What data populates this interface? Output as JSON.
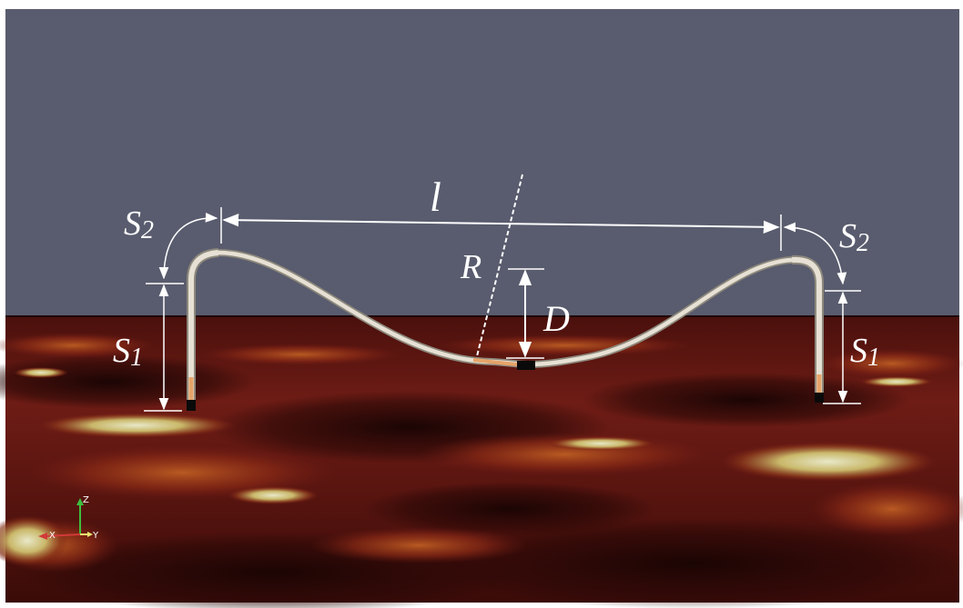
{
  "figure": {
    "labels": {
      "l": "l",
      "R": "R",
      "D": "D",
      "S2_left": "S2",
      "S2_right": "S2",
      "S1_left": "S1",
      "S1_right": "S1"
    },
    "axes_triad": {
      "z": "Z",
      "x": "X",
      "y": "Y"
    }
  },
  "colors": {
    "sky": "#595c6e",
    "seabed_dark": "#2a0a08",
    "seabed_mid": "#6b1a14",
    "seabed_hot": "#d2d296",
    "pipe": "#d9d4c7",
    "annotation": "#ffffff"
  }
}
